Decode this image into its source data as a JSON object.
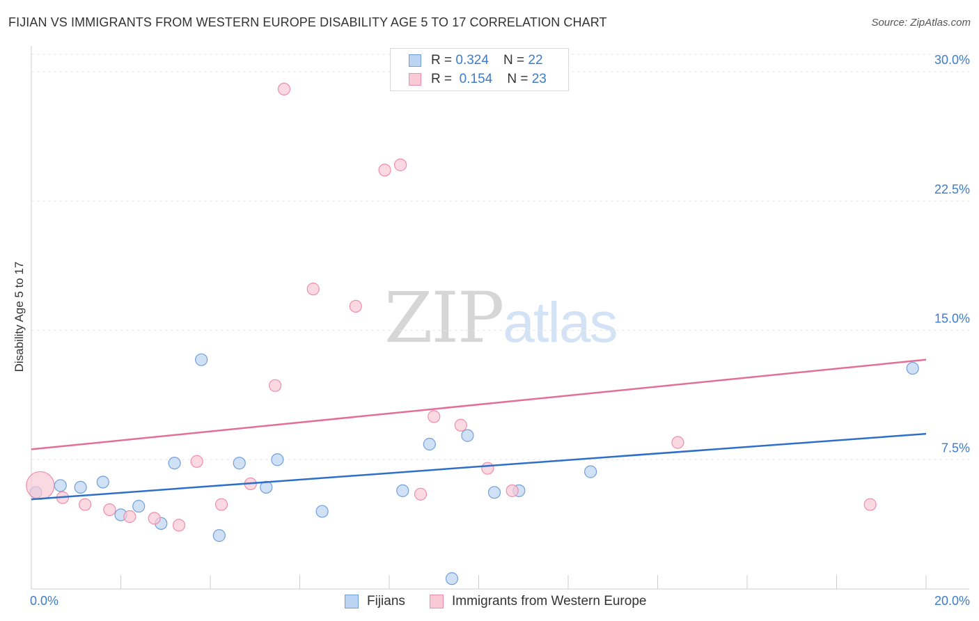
{
  "title": "FIJIAN VS IMMIGRANTS FROM WESTERN EUROPE DISABILITY AGE 5 TO 17 CORRELATION CHART",
  "source": "Source: ZipAtlas.com",
  "watermark": {
    "zip": "ZIP",
    "atlas": "atlas"
  },
  "legend_top": {
    "rows": [
      {
        "r_label": "R = ",
        "r_value": "0.324",
        "n_label": "N = ",
        "n_value": "22"
      },
      {
        "r_label": "R = ",
        "r_value": "0.154",
        "n_label": "N = ",
        "n_value": "23"
      }
    ]
  },
  "chart_data": {
    "type": "scatter",
    "title": "FIJIAN VS IMMIGRANTS FROM WESTERN EUROPE DISABILITY AGE 5 TO 17 CORRELATION CHART",
    "xlabel": "",
    "ylabel": "Disability Age 5 to 17",
    "xlim": [
      0,
      20
    ],
    "ylim": [
      0,
      31.5
    ],
    "x_tick_labels": [
      "0.0%",
      "20.0%"
    ],
    "y_ticks": [
      7.5,
      15.0,
      22.5,
      30.0
    ],
    "y_tick_labels": [
      "7.5%",
      "15.0%",
      "22.5%",
      "30.0%"
    ],
    "grid": true,
    "colors": {
      "fijians": "#6f9fdc",
      "fijians_fill": "#bcd4f1",
      "western_europe": "#ee8ea9",
      "western_europe_fill": "#f9c9d7",
      "blue_line": "#2f6fc9",
      "pink_line": "#e36f97"
    },
    "series": [
      {
        "name": "Fijians",
        "r": 0.324,
        "n": 22,
        "trend": {
          "x0": 0.0,
          "y0": 5.2,
          "x1": 20.0,
          "y1": 9.0
        },
        "points": [
          {
            "x": 0.1,
            "y": 5.6
          },
          {
            "x": 0.65,
            "y": 6.0
          },
          {
            "x": 1.1,
            "y": 5.9
          },
          {
            "x": 1.6,
            "y": 6.2
          },
          {
            "x": 2.0,
            "y": 4.3
          },
          {
            "x": 2.4,
            "y": 4.8
          },
          {
            "x": 2.9,
            "y": 3.8
          },
          {
            "x": 3.2,
            "y": 7.3
          },
          {
            "x": 3.8,
            "y": 13.3
          },
          {
            "x": 4.2,
            "y": 3.1
          },
          {
            "x": 4.65,
            "y": 7.3
          },
          {
            "x": 5.25,
            "y": 5.9
          },
          {
            "x": 5.5,
            "y": 7.5
          },
          {
            "x": 6.5,
            "y": 4.5
          },
          {
            "x": 8.3,
            "y": 5.7
          },
          {
            "x": 8.9,
            "y": 8.4
          },
          {
            "x": 9.4,
            "y": 0.6
          },
          {
            "x": 9.75,
            "y": 8.9
          },
          {
            "x": 10.35,
            "y": 5.6
          },
          {
            "x": 10.9,
            "y": 5.7
          },
          {
            "x": 12.5,
            "y": 6.8
          },
          {
            "x": 19.7,
            "y": 12.8
          }
        ]
      },
      {
        "name": "Immigrants from Western Europe",
        "r": 0.154,
        "n": 23,
        "trend": {
          "x0": 0.0,
          "y0": 8.1,
          "x1": 20.0,
          "y1": 13.3
        },
        "points": [
          {
            "x": 0.2,
            "y": 6.0,
            "big": true
          },
          {
            "x": 0.7,
            "y": 5.3
          },
          {
            "x": 1.2,
            "y": 4.9
          },
          {
            "x": 1.75,
            "y": 4.6
          },
          {
            "x": 2.2,
            "y": 4.2
          },
          {
            "x": 2.75,
            "y": 4.1
          },
          {
            "x": 3.3,
            "y": 3.7
          },
          {
            "x": 3.7,
            "y": 7.4
          },
          {
            "x": 4.25,
            "y": 4.9
          },
          {
            "x": 4.9,
            "y": 6.1
          },
          {
            "x": 5.45,
            "y": 11.8
          },
          {
            "x": 5.65,
            "y": 29.0
          },
          {
            "x": 6.3,
            "y": 17.4
          },
          {
            "x": 7.25,
            "y": 16.4
          },
          {
            "x": 7.9,
            "y": 24.3
          },
          {
            "x": 8.25,
            "y": 24.6
          },
          {
            "x": 8.7,
            "y": 5.5
          },
          {
            "x": 9.0,
            "y": 10.0
          },
          {
            "x": 9.6,
            "y": 9.5
          },
          {
            "x": 10.2,
            "y": 7.0
          },
          {
            "x": 10.75,
            "y": 5.7
          },
          {
            "x": 14.45,
            "y": 8.5
          },
          {
            "x": 18.75,
            "y": 4.9
          }
        ]
      }
    ],
    "legend": {
      "placement": "bottom-center",
      "entries": [
        "Fijians",
        "Immigrants from Western Europe"
      ]
    }
  }
}
